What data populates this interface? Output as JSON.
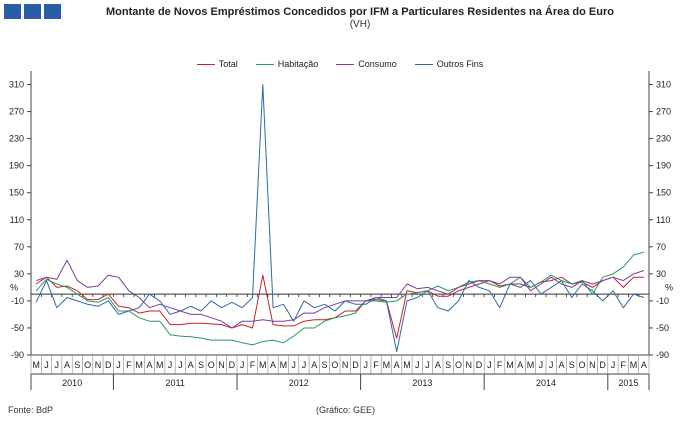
{
  "header": {
    "logo_icon": "bank-logo-icon",
    "title": "Montante de Novos Empréstimos Concedidos por IFM a Particulares Residentes na Área do Euro",
    "subtitle": "(VH)"
  },
  "footer": {
    "source": "Fonte:  BdP",
    "credit": "(Gráfico: GEE)"
  },
  "chart_data": {
    "type": "line",
    "title": "Montante de Novos Empréstimos Concedidos por IFM a Particulares Residentes na Área do Euro",
    "subtitle": "(VH)",
    "ylabel_left": "%",
    "ylabel_right": "%",
    "ylim": [
      -90,
      330
    ],
    "yticks": [
      310,
      270,
      230,
      190,
      150,
      110,
      70,
      30,
      -10,
      -50,
      -90
    ],
    "grid": false,
    "legend_position": "top-center",
    "month_labels": [
      "M",
      "J",
      "J",
      "A",
      "S",
      "O",
      "N",
      "D",
      "J",
      "F",
      "M",
      "A",
      "M",
      "J",
      "J",
      "A",
      "S",
      "O",
      "N",
      "D",
      "J",
      "F",
      "M",
      "A",
      "M",
      "J",
      "J",
      "A",
      "S",
      "O",
      "N",
      "D",
      "J",
      "F",
      "M",
      "A",
      "M",
      "J",
      "J",
      "A",
      "S",
      "O",
      "N",
      "D",
      "J",
      "F",
      "M",
      "A",
      "M",
      "J",
      "J",
      "A",
      "S",
      "O",
      "N",
      "D",
      "J",
      "F",
      "M",
      "A"
    ],
    "year_labels": [
      {
        "label": "2010",
        "start": 0,
        "end": 7
      },
      {
        "label": "2011",
        "start": 8,
        "end": 19
      },
      {
        "label": "2012",
        "start": 20,
        "end": 31
      },
      {
        "label": "2013",
        "start": 32,
        "end": 43
      },
      {
        "label": "2014",
        "start": 44,
        "end": 55
      },
      {
        "label": "2015",
        "start": 56,
        "end": 59
      }
    ],
    "series": [
      {
        "name": "Total",
        "color": "#c8202a",
        "values": [
          15,
          25,
          10,
          12,
          5,
          -8,
          -8,
          0,
          -18,
          -20,
          -28,
          -25,
          -25,
          -45,
          -45,
          -43,
          -43,
          -44,
          -45,
          -50,
          -45,
          -50,
          28,
          -45,
          -47,
          -47,
          -40,
          -38,
          -38,
          -35,
          -25,
          -25,
          -10,
          -8,
          -10,
          -65,
          5,
          2,
          5,
          -3,
          -3,
          5,
          10,
          15,
          20,
          12,
          15,
          15,
          10,
          18,
          20,
          25,
          15,
          18,
          10,
          20,
          25,
          10,
          25,
          25
        ]
      },
      {
        "name": "Habitação",
        "color": "#2a9a5a",
        "values": [
          5,
          22,
          15,
          10,
          0,
          -10,
          -12,
          -5,
          -25,
          -25,
          -35,
          -40,
          -40,
          -60,
          -62,
          -63,
          -65,
          -68,
          -68,
          -68,
          -72,
          -75,
          -70,
          -68,
          -72,
          -62,
          -50,
          -50,
          -40,
          -35,
          -32,
          -28,
          -10,
          -10,
          -12,
          -10,
          0,
          2,
          5,
          12,
          5,
          10,
          18,
          20,
          15,
          10,
          15,
          25,
          10,
          18,
          28,
          20,
          15,
          20,
          0,
          25,
          30,
          40,
          58,
          62
        ]
      },
      {
        "name": "Consumo",
        "color": "#7b3fa0",
        "values": [
          20,
          25,
          22,
          50,
          20,
          10,
          12,
          28,
          25,
          5,
          -5,
          -20,
          -15,
          -20,
          -25,
          -30,
          -30,
          -35,
          -40,
          -50,
          -40,
          -40,
          -38,
          -40,
          -40,
          -38,
          -28,
          -28,
          -20,
          -15,
          -10,
          -10,
          -10,
          -5,
          -5,
          -5,
          15,
          8,
          10,
          5,
          0,
          10,
          15,
          20,
          20,
          15,
          25,
          25,
          5,
          15,
          25,
          15,
          10,
          20,
          15,
          20,
          25,
          20,
          30,
          35
        ]
      },
      {
        "name": "Outros Fins",
        "color": "#2f6aa6",
        "values": [
          -12,
          20,
          -20,
          -5,
          -10,
          -15,
          -18,
          -10,
          -30,
          -25,
          -20,
          0,
          -10,
          -30,
          -25,
          -18,
          -25,
          -10,
          -20,
          -12,
          -20,
          -5,
          310,
          -20,
          -15,
          -40,
          -10,
          -20,
          -15,
          -25,
          -10,
          -15,
          -15,
          -5,
          -10,
          -85,
          -10,
          -5,
          5,
          -20,
          -25,
          -10,
          20,
          10,
          5,
          -20,
          15,
          10,
          20,
          0,
          10,
          20,
          -5,
          15,
          5,
          -10,
          5,
          -20,
          0,
          -5
        ]
      }
    ]
  }
}
